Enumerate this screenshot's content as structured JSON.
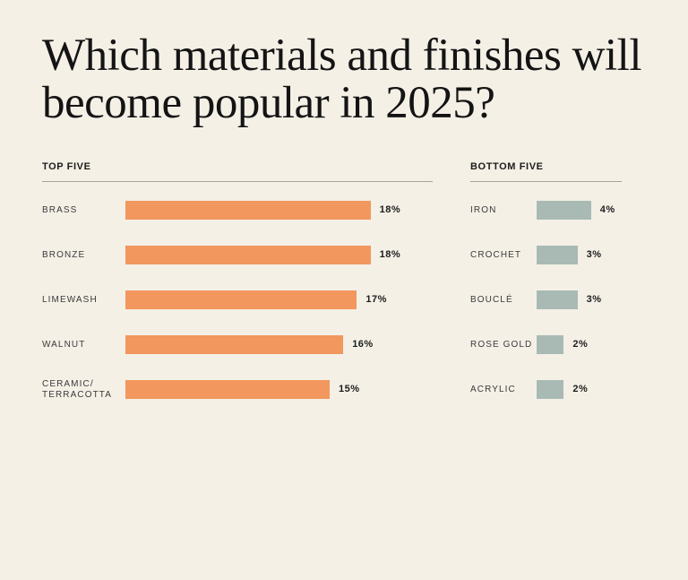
{
  "chart_data": [
    {
      "type": "bar",
      "orientation": "horizontal",
      "title": "TOP FIVE",
      "categories": [
        "BRASS",
        "BRONZE",
        "LIMEWASH",
        "WALNUT",
        "CERAMIC/ TERRACOTTA"
      ],
      "values": [
        18,
        18,
        17,
        16,
        15
      ],
      "labels": [
        "18%",
        "18%",
        "17%",
        "16%",
        "15%"
      ],
      "color": "#f2975e",
      "unit": "%"
    },
    {
      "type": "bar",
      "orientation": "horizontal",
      "title": "BOTTOM FIVE",
      "categories": [
        "IRON",
        "CROCHET",
        "BOUCLÉ",
        "ROSE GOLD",
        "ACRYLIC"
      ],
      "values": [
        4,
        3,
        3,
        2,
        2
      ],
      "labels": [
        "4%",
        "3%",
        "3%",
        "2%",
        "2%"
      ],
      "color": "#a9bab5",
      "unit": "%"
    }
  ],
  "headline": "Which materials and finishes will become popular in 2025?",
  "background": "#f4f0e6"
}
